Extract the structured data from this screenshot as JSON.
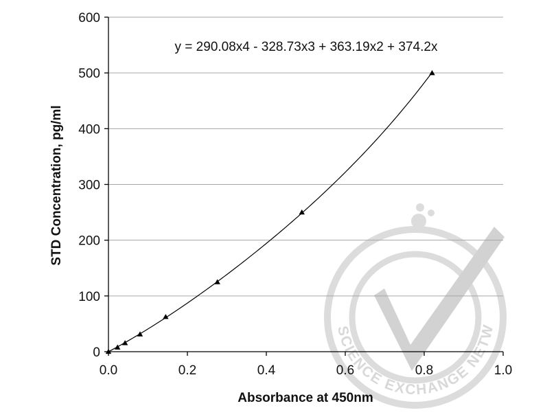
{
  "chart_data": {
    "type": "scatter",
    "title": "",
    "xlabel": "Absorbance at 450nm",
    "ylabel": "STD Concentration, pg/ml",
    "xlim": [
      0,
      1.0
    ],
    "ylim": [
      0,
      600
    ],
    "x_ticks": [
      "0.0",
      "0.2",
      "0.4",
      "0.6",
      "0.8",
      "1.0"
    ],
    "y_ticks": [
      "0",
      "100",
      "200",
      "300",
      "400",
      "500",
      "600"
    ],
    "x_tick_values": [
      0,
      0.2,
      0.4,
      0.6,
      0.8,
      1.0
    ],
    "y_tick_values": [
      0,
      100,
      200,
      300,
      400,
      500,
      600
    ],
    "grid": "horizontal",
    "series": [
      {
        "marker": "triangle",
        "color": "#000000",
        "x": [
          0.0,
          0.023,
          0.042,
          0.08,
          0.145,
          0.276,
          0.49,
          0.82
        ],
        "y": [
          0,
          7.8,
          15.6,
          31.25,
          62.5,
          125,
          250,
          500
        ]
      }
    ],
    "trendline": {
      "type": "polynomial",
      "coefficients": [
        290.08,
        -328.73,
        363.19,
        374.2,
        0
      ],
      "x_range": [
        0,
        0.82
      ],
      "equation": "y = 290.08x4 - 328.73x3 + 363.19x2 + 374.2x"
    }
  },
  "watermark": {
    "text": "THE SCIENCE EXCHANGE NETWORK",
    "color": "#d8d8d8"
  }
}
